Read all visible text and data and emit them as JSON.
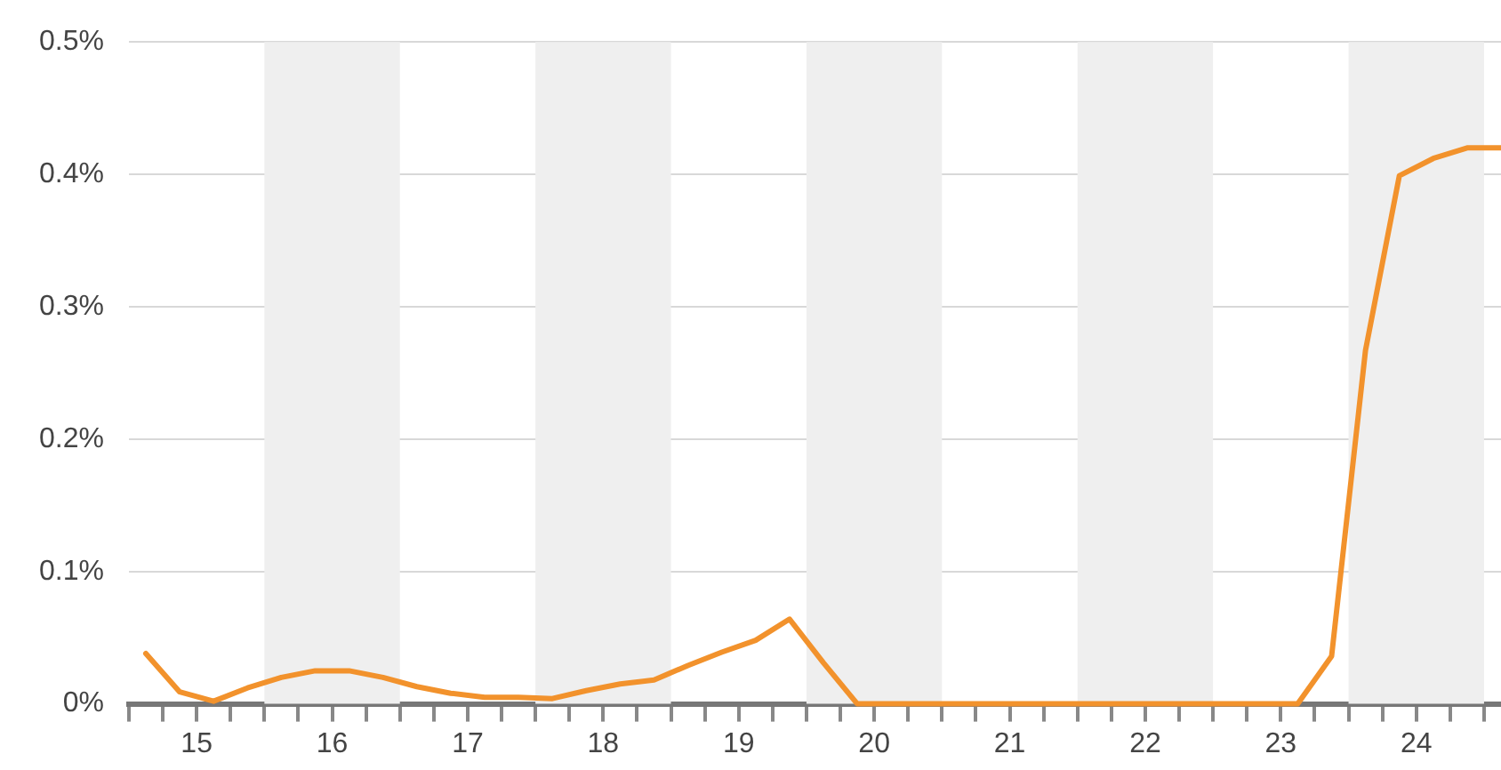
{
  "chart_data": {
    "type": "line",
    "x": [
      15.125,
      15.375,
      15.625,
      15.875,
      16.125,
      16.375,
      16.625,
      16.875,
      17.125,
      17.375,
      17.625,
      17.875,
      18.125,
      18.375,
      18.625,
      18.875,
      19.125,
      19.375,
      19.625,
      19.875,
      20.125,
      20.375,
      20.625,
      20.875,
      21.125,
      21.375,
      21.625,
      21.875,
      22.125,
      22.375,
      22.625,
      22.875,
      23.125,
      23.375,
      23.625,
      23.875,
      24.125,
      24.375,
      24.625,
      24.875,
      25.125
    ],
    "series": [
      {
        "color": "#f2922c",
        "values": [
          0.038,
          0.009,
          0.002,
          0.012,
          0.02,
          0.025,
          0.025,
          0.02,
          0.013,
          0.008,
          0.005,
          0.005,
          0.004,
          0.01,
          0.015,
          0.018,
          0.029,
          0.039,
          0.048,
          0.064,
          0.031,
          0,
          0,
          0,
          0,
          0,
          0,
          0,
          0,
          0,
          0,
          0,
          0,
          0,
          0,
          0.036,
          0.267,
          0.399,
          0.412,
          0.42,
          0.42
        ]
      }
    ],
    "xlim": [
      15,
      25.125
    ],
    "xticks": [
      {
        "value": 15,
        "label": null
      },
      {
        "value": 15.25,
        "label": null
      },
      {
        "value": 15.5,
        "label": "15"
      },
      {
        "value": 15.75,
        "label": null
      },
      {
        "value": 16,
        "label": null
      },
      {
        "value": 16.25,
        "label": null
      },
      {
        "value": 16.5,
        "label": "16"
      },
      {
        "value": 16.75,
        "label": null
      },
      {
        "value": 17,
        "label": null
      },
      {
        "value": 17.25,
        "label": null
      },
      {
        "value": 17.5,
        "label": "17"
      },
      {
        "value": 17.75,
        "label": null
      },
      {
        "value": 18,
        "label": null
      },
      {
        "value": 18.25,
        "label": null
      },
      {
        "value": 18.5,
        "label": "18"
      },
      {
        "value": 18.75,
        "label": null
      },
      {
        "value": 19,
        "label": null
      },
      {
        "value": 19.25,
        "label": null
      },
      {
        "value": 19.5,
        "label": "19"
      },
      {
        "value": 19.75,
        "label": null
      },
      {
        "value": 20,
        "label": null
      },
      {
        "value": 20.25,
        "label": null
      },
      {
        "value": 20.5,
        "label": "20"
      },
      {
        "value": 20.75,
        "label": null
      },
      {
        "value": 21,
        "label": null
      },
      {
        "value": 21.25,
        "label": null
      },
      {
        "value": 21.5,
        "label": "21"
      },
      {
        "value": 21.75,
        "label": null
      },
      {
        "value": 22,
        "label": null
      },
      {
        "value": 22.25,
        "label": null
      },
      {
        "value": 22.5,
        "label": "22"
      },
      {
        "value": 22.75,
        "label": null
      },
      {
        "value": 23,
        "label": null
      },
      {
        "value": 23.25,
        "label": null
      },
      {
        "value": 23.5,
        "label": "23"
      },
      {
        "value": 23.75,
        "label": null
      },
      {
        "value": 24,
        "label": null
      },
      {
        "value": 24.25,
        "label": null
      },
      {
        "value": 24.5,
        "label": "24"
      },
      {
        "value": 24.75,
        "label": null
      },
      {
        "value": 25,
        "label": null
      }
    ],
    "ylim": [
      0,
      0.5
    ],
    "yticks": [
      {
        "value": 0,
        "label": "0%"
      },
      {
        "value": 0.1,
        "label": "0.1%"
      },
      {
        "value": 0.2,
        "label": "0.2%"
      },
      {
        "value": 0.3,
        "label": "0.3%"
      },
      {
        "value": 0.4,
        "label": "0.4%"
      },
      {
        "value": 0.5,
        "label": "0.5%"
      }
    ],
    "bands": [
      {
        "axis": "x",
        "from": 16,
        "to": 17,
        "color": "#efefef"
      },
      {
        "axis": "x",
        "from": 18,
        "to": 19,
        "color": "#efefef"
      },
      {
        "axis": "x",
        "from": 20,
        "to": 21,
        "color": "#efefef"
      },
      {
        "axis": "x",
        "from": 22,
        "to": 23,
        "color": "#efefef"
      },
      {
        "axis": "x",
        "from": 24,
        "to": 25,
        "color": "#efefef"
      }
    ],
    "grid": "y",
    "legend": false,
    "marker": "none",
    "line_style": "solid"
  }
}
